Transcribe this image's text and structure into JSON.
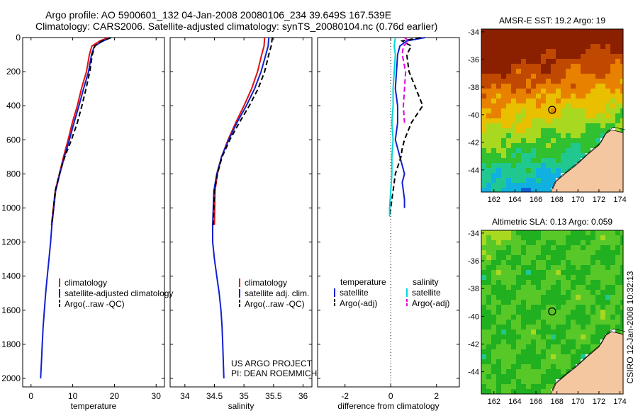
{
  "header": {
    "line1": "Argo profile: AO 5900601_132 04-Jan-2008 20080106_234 39.649S 167.539E",
    "line2": "Climatology: CARS2006. Satellite-adjusted climatology: synTS_20080104.nc (0.76d earlier)"
  },
  "colors": {
    "climatology": "#e01010",
    "satellite": "#1020d0",
    "argo": "#000000",
    "satellite_salinity": "#00d8d8",
    "argo_salinity_adj": "#e000e0",
    "land": "#f5c7a0",
    "marker": "#000000"
  },
  "credit": {
    "project": "US ARGO PROJECT",
    "pi": "PI: DEAN ROEMMICH",
    "csiro": "CSIRO 12-Jan-2008 10:32:13"
  },
  "chart_data": [
    {
      "type": "line",
      "xlabel": "temperature",
      "ylabel": "",
      "xlim": [
        -2,
        32
      ],
      "ylim": [
        2050,
        0
      ],
      "xticks": [
        0,
        10,
        20,
        30
      ],
      "yticks": [
        0,
        200,
        400,
        600,
        800,
        1000,
        1200,
        1400,
        1600,
        1800,
        2000
      ],
      "legend": {
        "placement": "lower-left",
        "entries": [
          "climatology",
          "satellite-adjusted climatology",
          "Argo(..raw -QC)"
        ]
      },
      "series": [
        {
          "name": "climatology",
          "color": "#e01010",
          "style": "solid",
          "x": [
            18.5,
            16.5,
            14.6,
            14.0,
            13.3,
            12.1,
            11.1,
            9.9,
            8.9,
            7.8,
            6.8,
            5.8,
            4.9
          ],
          "y": [
            0,
            20,
            50,
            100,
            200,
            300,
            400,
            500,
            600,
            700,
            800,
            900,
            1100
          ]
        },
        {
          "name": "satellite-adjusted climatology",
          "color": "#1020d0",
          "style": "solid",
          "x": [
            19.2,
            17.3,
            15.2,
            14.5,
            13.8,
            12.6,
            11.5,
            10.3,
            9.2,
            8.0,
            6.9,
            5.9,
            5.0,
            4.7,
            4.3,
            3.9,
            3.5,
            3.2,
            2.9,
            2.7,
            2.5,
            2.4,
            2.3
          ],
          "y": [
            0,
            20,
            50,
            100,
            200,
            300,
            400,
            500,
            600,
            700,
            800,
            900,
            1100,
            1200,
            1300,
            1400,
            1500,
            1600,
            1700,
            1800,
            1900,
            1950,
            2000
          ]
        },
        {
          "name": "Argo(..raw -QC)",
          "color": "#000000",
          "style": "dashed",
          "x": [
            19.2,
            17.0,
            15.3,
            14.7,
            14.1,
            13.2,
            12.2,
            11.1,
            9.7,
            8.1,
            6.8,
            5.8,
            5.0
          ],
          "y": [
            0,
            20,
            50,
            100,
            200,
            300,
            400,
            500,
            600,
            700,
            800,
            900,
            1100
          ]
        }
      ]
    },
    {
      "type": "line",
      "xlabel": "salinity",
      "ylabel": "",
      "xlim": [
        33.75,
        36.15
      ],
      "ylim": [
        2050,
        0
      ],
      "xticks": [
        34,
        34.5,
        35,
        35.5,
        36
      ],
      "xtick_labels": [
        "34",
        "34.5",
        "35",
        "35.5",
        "36"
      ],
      "yticks": [
        0,
        200,
        400,
        600,
        800,
        1000,
        1200,
        1400,
        1600,
        1800,
        2000
      ],
      "legend": {
        "placement": "lower-right",
        "entries": [
          "climatology",
          "satellite adj. clim.",
          "Argo(..raw -QC)"
        ]
      },
      "series": [
        {
          "name": "climatology",
          "color": "#e01010",
          "style": "solid",
          "x": [
            35.35,
            35.34,
            35.3,
            35.23,
            35.13,
            35.0,
            34.86,
            34.73,
            34.62,
            34.55,
            34.51,
            34.5
          ],
          "y": [
            0,
            50,
            100,
            200,
            300,
            400,
            500,
            600,
            700,
            800,
            900,
            1100
          ]
        },
        {
          "name": "satellite adj. clim.",
          "color": "#1020d0",
          "style": "solid",
          "x": [
            35.42,
            35.41,
            35.37,
            35.29,
            35.18,
            35.04,
            34.88,
            34.74,
            34.62,
            34.54,
            34.49,
            34.47,
            34.47,
            34.5,
            34.54,
            34.58,
            34.61,
            34.63,
            34.64,
            34.65,
            34.66
          ],
          "y": [
            0,
            50,
            100,
            200,
            300,
            400,
            500,
            600,
            700,
            800,
            900,
            1100,
            1200,
            1300,
            1400,
            1500,
            1600,
            1700,
            1800,
            1900,
            2000
          ]
        },
        {
          "name": "Argo(..raw -QC)",
          "color": "#000000",
          "style": "dashed",
          "x": [
            35.48,
            35.46,
            35.42,
            35.35,
            35.24,
            35.09,
            34.92,
            34.76,
            34.63,
            34.55,
            34.5,
            34.48
          ],
          "y": [
            0,
            50,
            100,
            200,
            300,
            400,
            500,
            600,
            700,
            800,
            900,
            1100
          ]
        }
      ]
    },
    {
      "type": "line",
      "xlabel": "difference from climatology",
      "ylabel": "",
      "xlim": [
        -3.2,
        3.0
      ],
      "ylim": [
        2050,
        0
      ],
      "xticks": [
        -2,
        0,
        2
      ],
      "yticks": [
        0,
        200,
        400,
        600,
        800,
        1000,
        1200,
        1400,
        1600,
        1800,
        2000
      ],
      "legend": {
        "placement": "lower-left",
        "headings": [
          "temperature",
          "salinity"
        ],
        "entries": [
          "satellite",
          "Argo(-adj)",
          "satellite",
          "Argo(-adj)"
        ]
      },
      "series": [
        {
          "name": "satellite",
          "group": "temperature",
          "color": "#1020d0",
          "style": "solid",
          "x": [
            1.5,
            0.7,
            0.4,
            0.3,
            0.25,
            0.2,
            0.3,
            0.3,
            0.2,
            0.4,
            0.6,
            0.5,
            0.6,
            0.6
          ],
          "y": [
            0,
            20,
            50,
            100,
            200,
            300,
            400,
            500,
            600,
            700,
            800,
            850,
            950,
            1000
          ]
        },
        {
          "name": "Argo(-adj)",
          "group": "temperature",
          "color": "#000000",
          "style": "dashed",
          "x": [
            1.3,
            0.5,
            0.9,
            0.7,
            0.8,
            1.1,
            1.4,
            0.9,
            0.6,
            0.5,
            0.45,
            0.2,
            0.1,
            0.0,
            -0.05
          ],
          "y": [
            0,
            20,
            50,
            100,
            200,
            300,
            400,
            500,
            600,
            650,
            700,
            800,
            900,
            1000,
            1050
          ]
        },
        {
          "name": "satellite",
          "group": "salinity",
          "color": "#00d8d8",
          "style": "solid",
          "x": [
            0.2,
            0.15,
            0.2,
            0.15,
            0.1,
            0.1,
            0.05,
            0.1,
            0.05,
            0.05,
            0.0,
            -0.05,
            -0.05
          ],
          "y": [
            0,
            50,
            100,
            200,
            300,
            400,
            500,
            600,
            700,
            800,
            900,
            1000,
            1050
          ]
        },
        {
          "name": "Argo(-adj)",
          "group": "salinity",
          "color": "#e000e0",
          "style": "dashed",
          "x": [
            0.6,
            0.8,
            0.55,
            0.5,
            0.65,
            0.6,
            0.55,
            0.6
          ],
          "y": [
            0,
            20,
            50,
            100,
            200,
            300,
            400,
            500
          ]
        }
      ]
    },
    {
      "type": "heatmap",
      "title": "AMSR-E SST: 19.2 Argo: 19",
      "xlim": [
        160.8,
        174.3
      ],
      "ylim": [
        -45.6,
        -33.8
      ],
      "xticks": [
        162,
        164,
        166,
        168,
        170,
        172,
        174
      ],
      "yticks": [
        -34,
        -36,
        -38,
        -40,
        -42,
        -44
      ],
      "marker": {
        "lon": 167.539,
        "lat": -39.649
      },
      "colorscale": [
        "#0a1a8c",
        "#1060d8",
        "#10b0e0",
        "#20c890",
        "#30c030",
        "#a8d820",
        "#e8c000",
        "#e88000",
        "#c04800",
        "#8a2000"
      ]
    },
    {
      "type": "heatmap",
      "title": "Altimetric SLA: 0.13 Argo: 0.059",
      "xlim": [
        160.8,
        174.3
      ],
      "ylim": [
        -45.6,
        -33.8
      ],
      "xticks": [
        162,
        164,
        166,
        168,
        170,
        172,
        174
      ],
      "yticks": [
        -34,
        -36,
        -38,
        -40,
        -42,
        -44
      ],
      "marker": {
        "lon": 167.539,
        "lat": -39.649
      },
      "colorscale": [
        "#10b0e0",
        "#20c890",
        "#20b020",
        "#58c828",
        "#a8d820",
        "#e8c000",
        "#e88000"
      ]
    }
  ]
}
